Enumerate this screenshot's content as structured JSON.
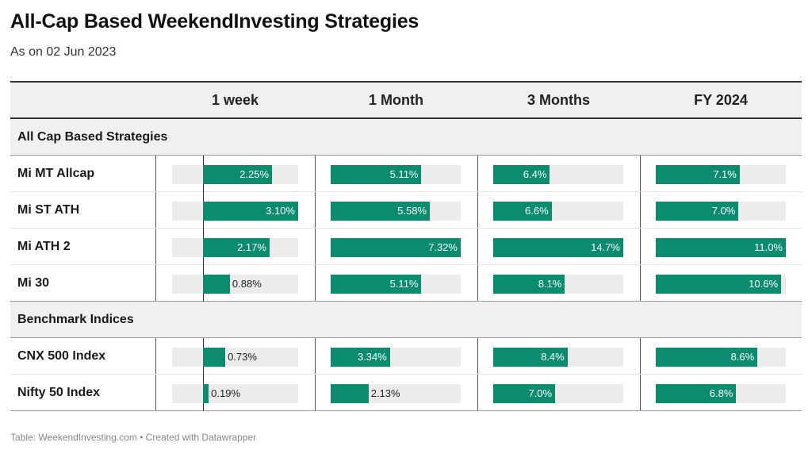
{
  "title": "All-Cap Based WeekendInvesting Strategies",
  "subtitle": "As on 02 Jun 2023",
  "footer": "Table: WeekendInvesting.com • Created with Datawrapper",
  "colors": {
    "bar": "#0b8c6e",
    "track": "#ececec",
    "header_bg": "#f0f0f0"
  },
  "chart_data": {
    "type": "table",
    "columns": [
      "",
      "1 week",
      "1 Month",
      "3 Months",
      "FY 2024"
    ],
    "groups": [
      {
        "name": "All Cap Based Strategies",
        "rows": [
          {
            "label": "Mi MT Allcap",
            "values": [
              2.25,
              5.11,
              6.4,
              7.1
            ],
            "display": [
              "2.25%",
              "5.11%",
              "6.4%",
              "7.1%"
            ]
          },
          {
            "label": "Mi ST ATH",
            "values": [
              3.1,
              5.58,
              6.6,
              7.0
            ],
            "display": [
              "3.10%",
              "5.58%",
              "6.6%",
              "7.0%"
            ]
          },
          {
            "label": "Mi ATH 2",
            "values": [
              2.17,
              7.32,
              14.7,
              11.0
            ],
            "display": [
              "2.17%",
              "7.32%",
              "14.7%",
              "11.0%"
            ]
          },
          {
            "label": "Mi 30",
            "values": [
              0.88,
              5.11,
              8.1,
              10.6
            ],
            "display": [
              "0.88%",
              "5.11%",
              "8.1%",
              "10.6%"
            ]
          }
        ]
      },
      {
        "name": "Benchmark Indices",
        "rows": [
          {
            "label": "CNX 500 Index",
            "values": [
              0.73,
              3.34,
              8.4,
              8.6
            ],
            "display": [
              "0.73%",
              "3.34%",
              "8.4%",
              "8.6%"
            ]
          },
          {
            "label": "Nifty 50 Index",
            "values": [
              0.19,
              2.13,
              7.0,
              6.8
            ],
            "display": [
              "0.19%",
              "2.13%",
              "7.0%",
              "6.8%"
            ]
          }
        ]
      }
    ],
    "column_ranges": [
      [
        -1.0,
        3.1
      ],
      [
        0,
        7.32
      ],
      [
        0,
        14.7
      ],
      [
        0,
        11.0
      ]
    ]
  }
}
